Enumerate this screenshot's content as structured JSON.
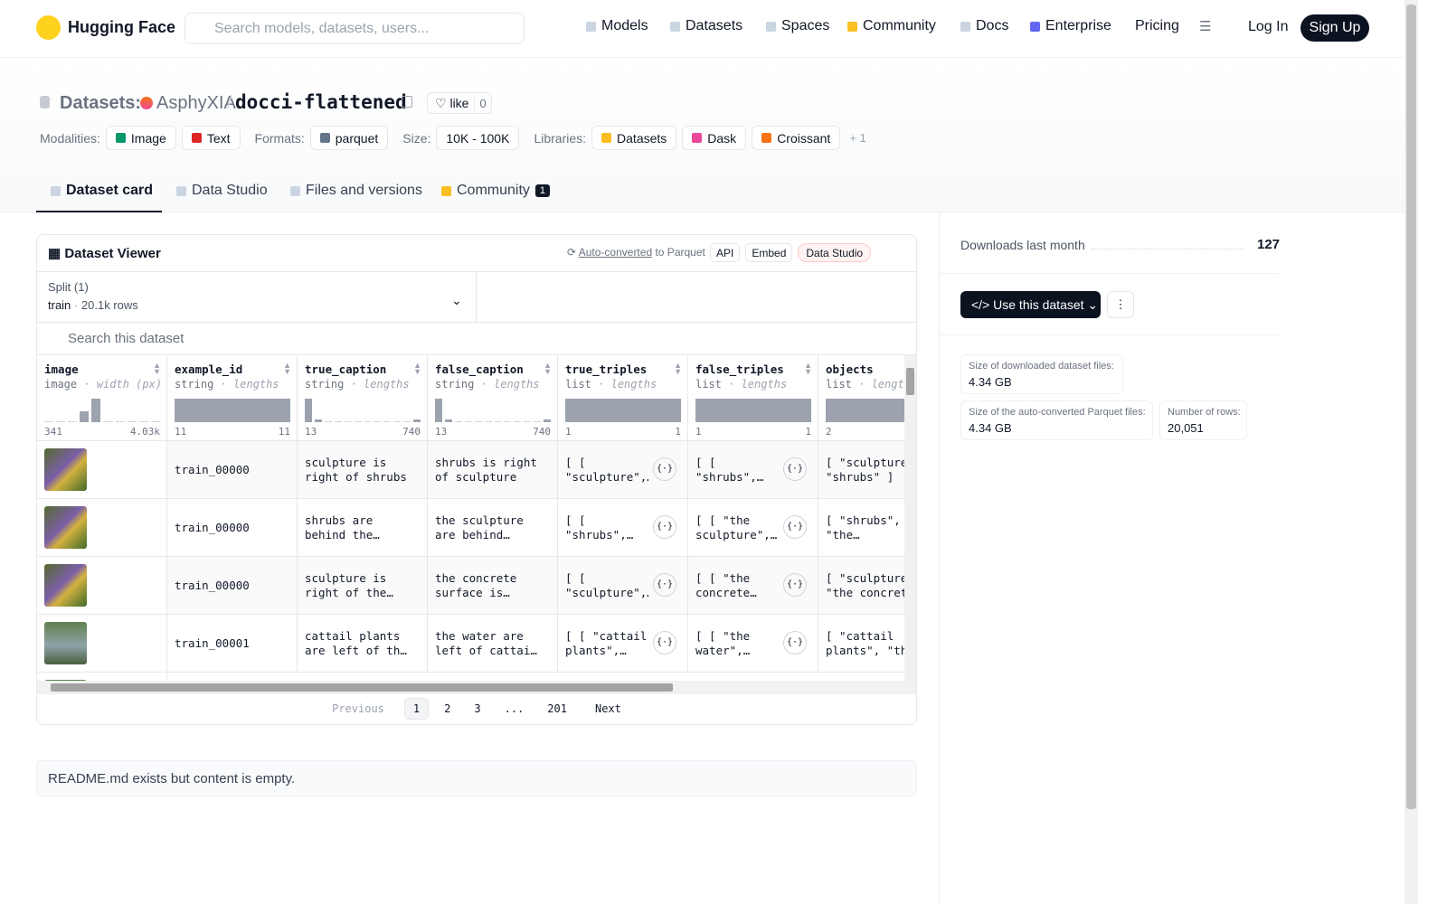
{
  "nav": {
    "brand": "Hugging Face",
    "search": "Search models, datasets, users...",
    "links": [
      "Models",
      "Datasets",
      "Spaces",
      "Community",
      "Docs",
      "Enterprise",
      "Pricing"
    ],
    "login": "Log In",
    "signup": "Sign Up"
  },
  "header": {
    "category": "Datasets:",
    "owner": "AsphyXIA",
    "separator": "/",
    "name": "docci-flattened",
    "like": "like",
    "likes": "0",
    "tags": [
      {
        "label": "Modalities:",
        "items": [
          "Image",
          "Text"
        ]
      },
      {
        "label": "Formats:",
        "items": [
          "parquet"
        ]
      },
      {
        "label": "Size:",
        "items": [
          "10K - 100K"
        ]
      },
      {
        "label": "Libraries:",
        "items": [
          "Datasets",
          "Dask",
          "Croissant"
        ]
      }
    ],
    "more": "+ 1"
  },
  "tabs": {
    "items": [
      "Dataset card",
      "Data Studio",
      "Files and versions",
      "Community"
    ],
    "badge": "1"
  },
  "viewer": {
    "title": "Dataset Viewer",
    "auto": "Auto-converted",
    "to": "to Parquet",
    "buttons": [
      "API",
      "Embed",
      "Data Studio"
    ],
    "split_label": "Split (1)",
    "split": "train",
    "rows_count": "20.1k rows",
    "search": "Search this dataset",
    "columns": [
      {
        "name": "image",
        "type": "image",
        "stat": "width (px)",
        "min": "341",
        "max": "4.03k",
        "hist": [
          0,
          0,
          0,
          4,
          9,
          0,
          0,
          0,
          0,
          0
        ]
      },
      {
        "name": "example_id",
        "type": "string",
        "stat": "lengths",
        "min": "11",
        "max": "11",
        "hist": [
          10
        ]
      },
      {
        "name": "true_caption",
        "type": "string",
        "stat": "lengths",
        "min": "13",
        "max": "740",
        "hist": [
          10,
          1,
          0,
          0,
          0,
          0,
          0,
          0,
          0,
          0,
          0,
          1
        ]
      },
      {
        "name": "false_caption",
        "type": "string",
        "stat": "lengths",
        "min": "13",
        "max": "740",
        "hist": [
          10,
          1,
          0,
          0,
          0,
          0,
          0,
          0,
          0,
          0,
          0,
          1
        ]
      },
      {
        "name": "true_triples",
        "type": "list",
        "stat": "lengths",
        "min": "1",
        "max": "1",
        "hist": [
          10
        ]
      },
      {
        "name": "false_triples",
        "type": "list",
        "stat": "lengths",
        "min": "1",
        "max": "1",
        "hist": [
          10
        ]
      },
      {
        "name": "objects",
        "type": "list",
        "stat": "lengths",
        "min": "2",
        "hist": [
          10
        ]
      }
    ],
    "rows": [
      [
        "train_00000",
        "sculpture is right of shrubs",
        "shrubs is right of sculpture",
        "[ [ \"sculpture\",…",
        "[ [ \"shrubs\", \"right of\",…",
        "[ \"sculpture\", \"shrubs\" ]"
      ],
      [
        "train_00000",
        "shrubs are behind the sculpture",
        "the sculpture are behind shrubs",
        "[ [ \"shrubs\", \"behind\", \"th…",
        "[ [ \"the sculpture\",…",
        "[ \"shrubs\", \"the…"
      ],
      [
        "train_00000",
        "sculpture is right of the concrete…",
        "the concrete surface is right…",
        "[ [ \"sculpture\",…",
        "[ [ \"the concrete…",
        "[ \"sculpture\", \"the concrete"
      ],
      [
        "train_00001",
        "cattail plants are left of the water",
        "the water are left of cattail plants",
        "[ [ \"cattail plants\", \"lef…",
        "[ [ \"the water\", \"left…",
        "[ \"cattail plants\", \"the"
      ]
    ],
    "pagination": {
      "prev": "Previous",
      "pages": [
        "1",
        "2",
        "3",
        "...",
        "201"
      ],
      "next": "Next"
    }
  },
  "readme": "README.md exists but content is empty.",
  "sidebar": {
    "downloads_label": "Downloads last month",
    "downloads": "127",
    "use": "Use this dataset",
    "stats": [
      {
        "label": "Size of downloaded dataset files:",
        "value": "4.34 GB"
      },
      {
        "label": "Size of the auto-converted Parquet files:",
        "value": "4.34 GB"
      },
      {
        "label": "Number of rows:",
        "value": "20,051"
      }
    ]
  }
}
